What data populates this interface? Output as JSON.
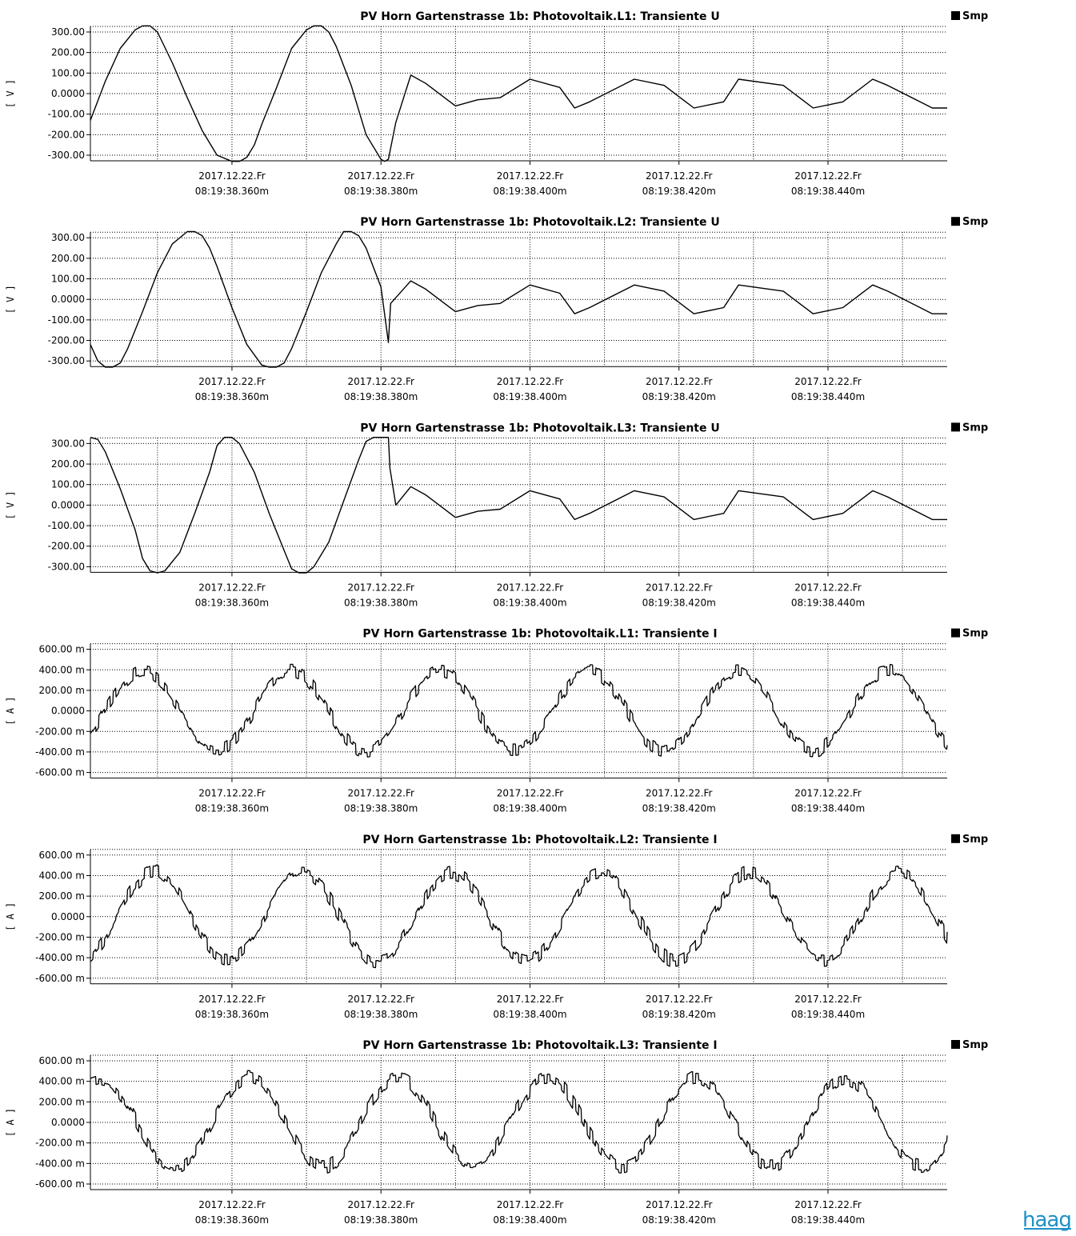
{
  "legend_label": "Smp",
  "logo_text": "haag",
  "colors": {
    "trace": "#000000",
    "grid": "#000000",
    "background": "#ffffff",
    "logo": "#1e90c8"
  },
  "x_ticks": [
    {
      "date": "2017.12.22.Fr",
      "time": "08:19:38.360m",
      "ms": 360
    },
    {
      "date": "2017.12.22.Fr",
      "time": "08:19:38.380m",
      "ms": 380
    },
    {
      "date": "2017.12.22.Fr",
      "time": "08:19:38.400m",
      "ms": 400
    },
    {
      "date": "2017.12.22.Fr",
      "time": "08:19:38.420m",
      "ms": 420
    },
    {
      "date": "2017.12.22.Fr",
      "time": "08:19:38.440m",
      "ms": 440
    }
  ],
  "chart_data": [
    {
      "type": "line",
      "title": "PV Horn Gartenstrasse 1b:   Photovoltaik.L1:   Transiente U",
      "ylabel": "[ V ]",
      "yticks": [
        "300.00",
        "200.00",
        "100.00",
        "0.0000",
        "-100.00",
        "-200.00",
        "-300.00"
      ],
      "ylim": [
        -335,
        335
      ],
      "xlim_ms": [
        341,
        456
      ],
      "grid": true,
      "legend": "top-right",
      "series": [
        {
          "name": "Smp",
          "x_ms": [
            341.0,
            343.0,
            345.0,
            347.0,
            348.0,
            349.0,
            350.0,
            352.0,
            354.0,
            356.0,
            358.0,
            360.0,
            361.0,
            362.0,
            363.0,
            364.0,
            366.0,
            368.0,
            370.0,
            371.0,
            372.0,
            373.0,
            374.0,
            376.0,
            378.0,
            380.0,
            380.5,
            381.0,
            382.0,
            384.0,
            386.0,
            390.0,
            393.0,
            396.0,
            400.0,
            404.0,
            406.0,
            408.0,
            414.0,
            418.0,
            422.0,
            426.0,
            428.0,
            434.0,
            438.0,
            442.0,
            446.0,
            448.0,
            454.0,
            456.0
          ],
          "y": [
            -130,
            60,
            220,
            310,
            330,
            330,
            300,
            150,
            -20,
            -180,
            -300,
            -330,
            -330,
            -310,
            -250,
            -150,
            30,
            220,
            310,
            330,
            330,
            300,
            230,
            40,
            -200,
            -320,
            -330,
            -320,
            -140,
            90,
            50,
            -60,
            -30,
            -20,
            70,
            30,
            -70,
            -40,
            70,
            40,
            -70,
            -40,
            70,
            40,
            -70,
            -40,
            70,
            40,
            -70,
            -70
          ]
        }
      ]
    },
    {
      "type": "line",
      "title": "PV Horn Gartenstrasse 1b:   Photovoltaik.L2:   Transiente U",
      "ylabel": "[ V ]",
      "yticks": [
        "300.00",
        "200.00",
        "100.00",
        "0.0000",
        "-100.00",
        "-200.00",
        "-300.00"
      ],
      "ylim": [
        -335,
        335
      ],
      "xlim_ms": [
        341,
        456
      ],
      "grid": true,
      "legend": "top-right",
      "series": [
        {
          "name": "Smp",
          "x_ms": [
            341.0,
            342.0,
            343.0,
            344.0,
            345.0,
            346.0,
            348.0,
            350.0,
            352.0,
            354.0,
            355.0,
            356.0,
            357.0,
            358.0,
            360.0,
            362.0,
            364.0,
            365.0,
            366.0,
            367.0,
            368.0,
            370.0,
            372.0,
            374.0,
            375.0,
            376.0,
            377.0,
            378.0,
            380.0,
            381.0,
            381.3,
            384.0,
            386.0,
            390.0,
            393.0,
            396.0,
            400.0,
            404.0,
            406.0,
            408.0,
            414.0,
            418.0,
            422.0,
            426.0,
            428.0,
            434.0,
            438.0,
            442.0,
            446.0,
            448.0,
            454.0,
            456.0
          ],
          "y": [
            -220,
            -300,
            -330,
            -330,
            -310,
            -240,
            -60,
            130,
            270,
            330,
            330,
            310,
            250,
            160,
            -40,
            -220,
            -320,
            -330,
            -330,
            -310,
            -240,
            -60,
            130,
            270,
            330,
            330,
            310,
            250,
            60,
            -210,
            -20,
            90,
            50,
            -60,
            -30,
            -20,
            70,
            30,
            -70,
            -40,
            70,
            40,
            -70,
            -40,
            70,
            40,
            -70,
            -40,
            70,
            40,
            -70,
            -70
          ]
        }
      ]
    },
    {
      "type": "line",
      "title": "PV Horn Gartenstrasse 1b:   Photovoltaik.L3:   Transiente U",
      "ylabel": "[ V ]",
      "yticks": [
        "300.00",
        "200.00",
        "100.00",
        "0.0000",
        "-100.00",
        "-200.00",
        "-300.00"
      ],
      "ylim": [
        -335,
        335
      ],
      "xlim_ms": [
        341,
        456
      ],
      "grid": true,
      "legend": "top-right",
      "series": [
        {
          "name": "Smp",
          "x_ms": [
            341.0,
            342.0,
            343.0,
            345.0,
            347.0,
            348.0,
            349.0,
            350.0,
            351.0,
            353.0,
            355.0,
            357.0,
            358.0,
            359.0,
            360.0,
            361.0,
            363.0,
            365.0,
            367.0,
            368.0,
            369.0,
            370.0,
            371.0,
            373.0,
            375.0,
            377.0,
            378.0,
            379.0,
            380.0,
            381.0,
            381.2,
            382.0,
            384.0,
            386.0,
            390.0,
            393.0,
            396.0,
            400.0,
            404.0,
            406.0,
            408.0,
            414.0,
            418.0,
            422.0,
            426.0,
            428.0,
            434.0,
            438.0,
            442.0,
            446.0,
            448.0,
            454.0,
            456.0
          ],
          "y": [
            330,
            320,
            260,
            80,
            -120,
            -260,
            -320,
            -330,
            -320,
            -230,
            -40,
            160,
            290,
            330,
            330,
            300,
            160,
            -40,
            -220,
            -310,
            -330,
            -330,
            -300,
            -180,
            20,
            220,
            310,
            330,
            330,
            330,
            180,
            0,
            90,
            50,
            -60,
            -30,
            -20,
            70,
            30,
            -70,
            -40,
            70,
            40,
            -70,
            -40,
            70,
            40,
            -70,
            -40,
            70,
            40,
            -70,
            -70
          ]
        }
      ]
    },
    {
      "type": "line",
      "title": "PV Horn Gartenstrasse 1b:   Photovoltaik.L1:   Transiente I",
      "ylabel": "[ A ]",
      "yticks": [
        "600.00 m",
        "400.00 m",
        "200.00 m",
        "0.0000",
        "-200.00 m",
        "-400.00 m",
        "-600.00 m"
      ],
      "ylim": [
        -600,
        600
      ],
      "xlim_ms": [
        341,
        456
      ],
      "grid": true,
      "legend": "top-right",
      "series": [
        {
          "name": "Smp",
          "wave": {
            "amplitude": 390,
            "period_ms": 20,
            "phase_ms": 343.0,
            "noise": 70,
            "samples": 1800
          },
          "y_range": [
            -500,
            530
          ]
        }
      ]
    },
    {
      "type": "line",
      "title": "PV Horn Gartenstrasse 1b:   Photovoltaik.L2:   Transiente I",
      "ylabel": "[ A ]",
      "yticks": [
        "600.00 m",
        "400.00 m",
        "200.00 m",
        "0.0000",
        "-200.00 m",
        "-400.00 m",
        "-600.00 m"
      ],
      "ylim": [
        -600,
        600
      ],
      "xlim_ms": [
        341,
        456
      ],
      "grid": true,
      "legend": "top-right",
      "series": [
        {
          "name": "Smp",
          "wave": {
            "amplitude": 430,
            "period_ms": 20,
            "phase_ms": 344.5,
            "noise": 75,
            "samples": 1800
          },
          "y_range": [
            -570,
            570
          ]
        }
      ]
    },
    {
      "type": "line",
      "title": "PV Horn Gartenstrasse 1b:   Photovoltaik.L3:   Transiente I",
      "ylabel": "[ A ]",
      "yticks": [
        "600.00 m",
        "400.00 m",
        "200.00 m",
        "0.0000",
        "-200.00 m",
        "-400.00 m",
        "-600.00 m"
      ],
      "ylim": [
        -600,
        600
      ],
      "xlim_ms": [
        341,
        456
      ],
      "grid": true,
      "legend": "top-right",
      "series": [
        {
          "name": "Smp",
          "wave": {
            "amplitude": 430,
            "period_ms": 20,
            "phase_ms": 337.3,
            "noise": 75,
            "samples": 1800
          },
          "y_range": [
            -580,
            610
          ]
        }
      ]
    }
  ]
}
